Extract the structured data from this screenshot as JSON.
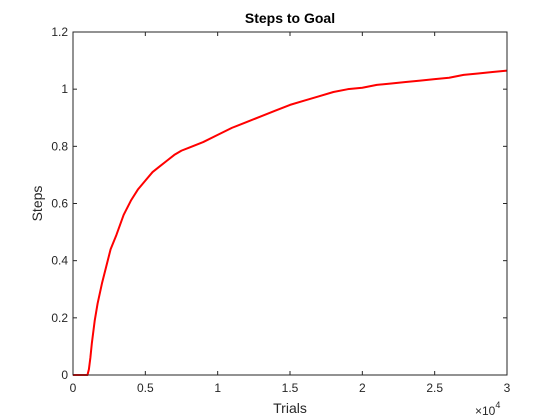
{
  "chart_data": {
    "type": "line",
    "title": "Steps to Goal",
    "xlabel": "Trials",
    "ylabel": "Steps",
    "x_exponent_base": "×10",
    "x_exponent_power": "4",
    "xlim": [
      0,
      30000
    ],
    "ylim": [
      0,
      1.2
    ],
    "grid": false,
    "box": true,
    "colors": {
      "line": "#ff0000",
      "axes": "#262626",
      "background": "#ffffff"
    },
    "x_ticks": [
      {
        "value": 0,
        "label": "0"
      },
      {
        "value": 5000,
        "label": "0.5"
      },
      {
        "value": 10000,
        "label": "1"
      },
      {
        "value": 15000,
        "label": "1.5"
      },
      {
        "value": 20000,
        "label": "2"
      },
      {
        "value": 25000,
        "label": "2.5"
      },
      {
        "value": 30000,
        "label": "3"
      }
    ],
    "y_ticks": [
      {
        "value": 0,
        "label": "0"
      },
      {
        "value": 0.2,
        "label": "0.2"
      },
      {
        "value": 0.4,
        "label": "0.4"
      },
      {
        "value": 0.6,
        "label": "0.6"
      },
      {
        "value": 0.8,
        "label": "0.8"
      },
      {
        "value": 1.0,
        "label": "1"
      },
      {
        "value": 1.2,
        "label": "1.2"
      }
    ],
    "series": [
      {
        "color": "#ff0000",
        "x": [
          0,
          500,
          1000,
          1100,
          1200,
          1300,
          1500,
          1700,
          2000,
          2300,
          2600,
          3000,
          3500,
          4000,
          4500,
          5000,
          5500,
          6000,
          6500,
          7000,
          7500,
          8000,
          9000,
          10000,
          11000,
          12000,
          13000,
          14000,
          15000,
          16000,
          17000,
          18000,
          19000,
          20000,
          21000,
          22000,
          23000,
          24000,
          25000,
          26000,
          27000,
          28000,
          29000,
          30000
        ],
        "y": [
          0,
          0,
          0,
          0.02,
          0.06,
          0.11,
          0.19,
          0.25,
          0.32,
          0.38,
          0.44,
          0.49,
          0.56,
          0.61,
          0.65,
          0.68,
          0.71,
          0.73,
          0.75,
          0.77,
          0.785,
          0.795,
          0.815,
          0.84,
          0.865,
          0.885,
          0.905,
          0.925,
          0.945,
          0.96,
          0.975,
          0.99,
          1.0,
          1.005,
          1.015,
          1.02,
          1.025,
          1.03,
          1.035,
          1.04,
          1.05,
          1.055,
          1.06,
          1.065
        ]
      }
    ]
  }
}
